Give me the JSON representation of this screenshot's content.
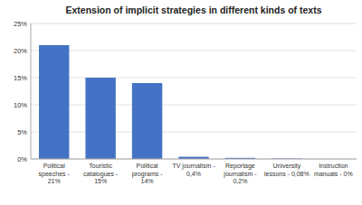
{
  "chart_data": {
    "type": "bar",
    "title": "Extension of implicit strategies in different kinds of texts",
    "categories": [
      "Political\nspeeches -\n21%",
      "Touristic\ncatalogues -\n15%",
      "Political\nprograms -\n14%",
      "TV journalism -\n0,4%",
      "Reportage\njournalism -\n0,2%",
      "University\nlessons - 0,08%",
      "Instruction\nmanuals - 0%"
    ],
    "values": [
      21,
      15,
      14,
      0.4,
      0.2,
      0.08,
      0
    ],
    "color": "#4472C4",
    "ylim": [
      0,
      25
    ],
    "yticks": [
      {
        "value": 0,
        "label": "0%"
      },
      {
        "value": 5,
        "label": "5%"
      },
      {
        "value": 10,
        "label": "10%"
      },
      {
        "value": 15,
        "label": "15%"
      },
      {
        "value": 20,
        "label": "20%"
      },
      {
        "value": 25,
        "label": "25%"
      }
    ],
    "grid": true
  }
}
